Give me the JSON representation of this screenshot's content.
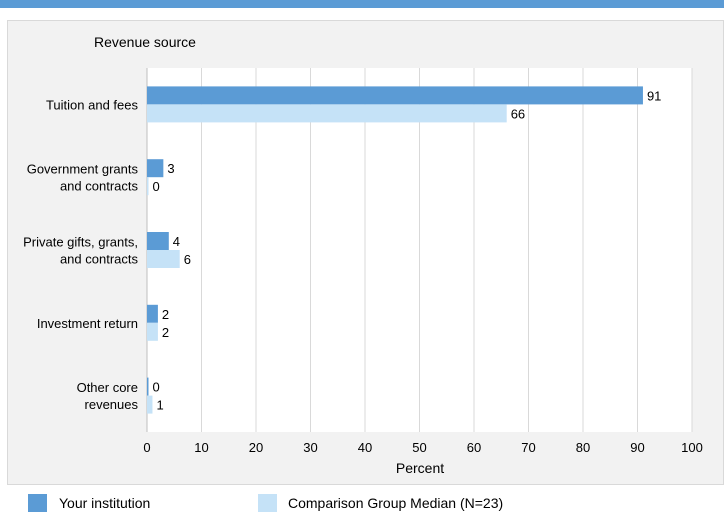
{
  "chart_data": {
    "type": "bar",
    "orientation": "horizontal",
    "title": "Revenue source",
    "xlabel": "Percent",
    "ylabel": "",
    "xlim": [
      0,
      100
    ],
    "xticks": [
      0,
      10,
      20,
      30,
      40,
      50,
      60,
      70,
      80,
      90,
      100
    ],
    "grid": true,
    "legend_position": "bottom",
    "categories": [
      "Tuition and fees",
      "Government grants and contracts",
      "Private gifts, grants, and contracts",
      "Investment return",
      "Other core revenues"
    ],
    "category_lines": [
      [
        "Tuition and fees"
      ],
      [
        "Government grants",
        "and contracts"
      ],
      [
        "Private gifts, grants,",
        "and contracts"
      ],
      [
        "Investment return"
      ],
      [
        "Other core",
        "revenues"
      ]
    ],
    "series": [
      {
        "name": "Your institution",
        "values": [
          91,
          3,
          4,
          2,
          0
        ],
        "color": "#5b9bd5"
      },
      {
        "name": "Comparison Group Median (N=23)",
        "values": [
          66,
          0,
          6,
          2,
          1
        ],
        "color": "#c5e2f7"
      }
    ]
  }
}
